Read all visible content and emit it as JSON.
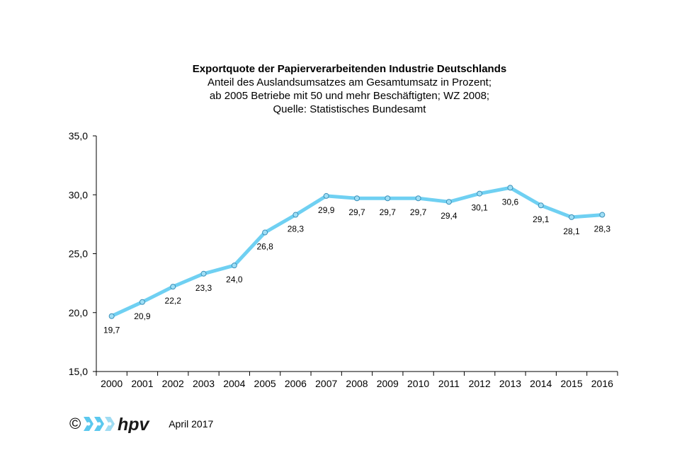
{
  "chart_data": {
    "type": "line",
    "title": "Exportquote der Papierverarbeitenden Industrie Deutschlands",
    "subtitle": [
      "Anteil des Auslandsumsatzes  am Gesamtumsatz  in Prozent;",
      "ab 2005 Betriebe mit 50 und mehr Beschäftigten; WZ 2008;",
      "Quelle:  Statistisches  Bundesamt"
    ],
    "x": [
      "2000",
      "2001",
      "2002",
      "2003",
      "2004",
      "2005",
      "2006",
      "2007",
      "2008",
      "2009",
      "2010",
      "2011",
      "2012",
      "2013",
      "2014",
      "2015",
      "2016"
    ],
    "series": [
      {
        "values": [
          19.7,
          20.9,
          22.2,
          23.3,
          24.0,
          26.8,
          28.3,
          29.9,
          29.7,
          29.7,
          29.7,
          29.4,
          30.1,
          30.6,
          29.1,
          28.1,
          28.3
        ],
        "labels": [
          "19,7",
          "20,9",
          "22,2",
          "23,3",
          "24,0",
          "26,8",
          "28,3",
          "29,9",
          "29,7",
          "29,7",
          "29,7",
          "29,4",
          "30,1",
          "30,6",
          "29,1",
          "28,1",
          "28,3"
        ],
        "color": "#6fd0f2",
        "marker_color": "#9fdff6"
      }
    ],
    "ylim": [
      15,
      35
    ],
    "yticks": [
      15,
      20,
      25,
      30,
      35
    ],
    "ytick_labels": [
      "15,0",
      "20,0",
      "25,0",
      "30,0",
      "35,0"
    ],
    "grid": false,
    "xlabel": "",
    "ylabel": ""
  },
  "footer": {
    "copyright": "©",
    "logo_text": "hpv",
    "date": "April 2017"
  },
  "colors": {
    "logo_blue": "#5bc8ee",
    "logo_dark": "#1a1a1a"
  }
}
